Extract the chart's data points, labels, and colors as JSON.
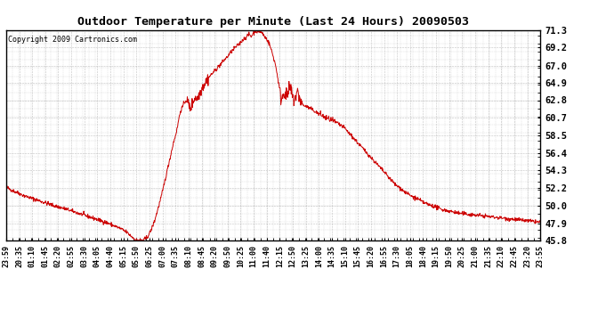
{
  "title": "Outdoor Temperature per Minute (Last 24 Hours) 20090503",
  "copyright_text": "Copyright 2009 Cartronics.com",
  "line_color": "#cc0000",
  "bg_color": "#ffffff",
  "grid_color": "#999999",
  "yticks": [
    45.8,
    47.9,
    50.0,
    52.2,
    54.3,
    56.4,
    58.5,
    60.7,
    62.8,
    64.9,
    67.0,
    69.2,
    71.3
  ],
  "ylim": [
    45.8,
    71.3
  ],
  "xtick_labels": [
    "23:59",
    "20:35",
    "01:10",
    "01:45",
    "02:20",
    "02:55",
    "03:30",
    "04:05",
    "04:40",
    "05:15",
    "05:50",
    "06:25",
    "07:00",
    "07:35",
    "08:10",
    "08:45",
    "09:20",
    "09:50",
    "10:25",
    "11:00",
    "11:40",
    "12:15",
    "12:50",
    "13:25",
    "14:00",
    "14:35",
    "15:10",
    "15:45",
    "16:20",
    "16:55",
    "17:30",
    "18:05",
    "18:40",
    "19:15",
    "19:50",
    "20:25",
    "21:00",
    "21:35",
    "22:10",
    "22:45",
    "23:20",
    "23:55"
  ],
  "control_points": [
    [
      0,
      52.3
    ],
    [
      10,
      52.0
    ],
    [
      20,
      51.8
    ],
    [
      35,
      51.5
    ],
    [
      50,
      51.2
    ],
    [
      70,
      50.9
    ],
    [
      90,
      50.6
    ],
    [
      110,
      50.3
    ],
    [
      130,
      50.0
    ],
    [
      155,
      49.7
    ],
    [
      175,
      49.4
    ],
    [
      195,
      49.1
    ],
    [
      215,
      48.8
    ],
    [
      235,
      48.5
    ],
    [
      255,
      48.2
    ],
    [
      275,
      47.9
    ],
    [
      295,
      47.5
    ],
    [
      310,
      47.2
    ],
    [
      325,
      46.8
    ],
    [
      335,
      46.4
    ],
    [
      345,
      46.0
    ],
    [
      350,
      45.85
    ],
    [
      360,
      45.82
    ],
    [
      370,
      45.85
    ],
    [
      380,
      46.2
    ],
    [
      390,
      47.0
    ],
    [
      400,
      48.2
    ],
    [
      410,
      49.8
    ],
    [
      420,
      51.5
    ],
    [
      430,
      53.5
    ],
    [
      440,
      55.5
    ],
    [
      450,
      57.5
    ],
    [
      460,
      59.2
    ],
    [
      465,
      60.5
    ],
    [
      470,
      61.5
    ],
    [
      475,
      62.0
    ],
    [
      480,
      62.5
    ],
    [
      485,
      62.8
    ],
    [
      490,
      62.5
    ],
    [
      495,
      61.8
    ],
    [
      500,
      62.2
    ],
    [
      505,
      62.8
    ],
    [
      510,
      63.2
    ],
    [
      515,
      63.0
    ],
    [
      520,
      63.5
    ],
    [
      525,
      64.0
    ],
    [
      530,
      64.5
    ],
    [
      535,
      64.8
    ],
    [
      540,
      65.2
    ],
    [
      545,
      65.5
    ],
    [
      550,
      65.8
    ],
    [
      555,
      66.0
    ],
    [
      560,
      66.3
    ],
    [
      565,
      66.5
    ],
    [
      570,
      66.8
    ],
    [
      575,
      67.0
    ],
    [
      580,
      67.3
    ],
    [
      585,
      67.5
    ],
    [
      590,
      67.8
    ],
    [
      595,
      68.0
    ],
    [
      600,
      68.3
    ],
    [
      605,
      68.6
    ],
    [
      610,
      68.8
    ],
    [
      615,
      69.1
    ],
    [
      620,
      69.3
    ],
    [
      625,
      69.5
    ],
    [
      630,
      69.7
    ],
    [
      635,
      70.0
    ],
    [
      640,
      70.2
    ],
    [
      645,
      70.4
    ],
    [
      650,
      70.6
    ],
    [
      655,
      70.8
    ],
    [
      660,
      70.5
    ],
    [
      665,
      70.9
    ],
    [
      668,
      71.0
    ],
    [
      670,
      71.2
    ],
    [
      672,
      71.3
    ],
    [
      675,
      71.1
    ],
    [
      678,
      71.0
    ],
    [
      682,
      71.2
    ],
    [
      685,
      71.1
    ],
    [
      688,
      71.0
    ],
    [
      692,
      70.8
    ],
    [
      696,
      70.5
    ],
    [
      700,
      70.3
    ],
    [
      705,
      70.0
    ],
    [
      710,
      69.5
    ],
    [
      715,
      68.8
    ],
    [
      720,
      68.0
    ],
    [
      725,
      67.2
    ],
    [
      730,
      66.0
    ],
    [
      735,
      64.5
    ],
    [
      740,
      63.0
    ],
    [
      745,
      63.3
    ],
    [
      748,
      63.8
    ],
    [
      752,
      63.5
    ],
    [
      755,
      63.2
    ],
    [
      758,
      63.5
    ],
    [
      762,
      64.0
    ],
    [
      765,
      64.3
    ],
    [
      768,
      63.8
    ],
    [
      772,
      63.2
    ],
    [
      775,
      62.8
    ],
    [
      780,
      63.2
    ],
    [
      785,
      63.8
    ],
    [
      790,
      63.2
    ],
    [
      795,
      62.5
    ],
    [
      800,
      62.2
    ],
    [
      810,
      62.0
    ],
    [
      820,
      61.8
    ],
    [
      830,
      61.5
    ],
    [
      840,
      61.2
    ],
    [
      850,
      61.0
    ],
    [
      855,
      60.8
    ],
    [
      860,
      60.7
    ],
    [
      870,
      60.5
    ],
    [
      880,
      60.3
    ],
    [
      890,
      60.0
    ],
    [
      900,
      59.8
    ],
    [
      910,
      59.5
    ],
    [
      920,
      59.0
    ],
    [
      930,
      58.5
    ],
    [
      940,
      58.0
    ],
    [
      950,
      57.5
    ],
    [
      960,
      57.0
    ],
    [
      970,
      56.5
    ],
    [
      980,
      56.0
    ],
    [
      990,
      55.5
    ],
    [
      1000,
      55.0
    ],
    [
      1010,
      54.5
    ],
    [
      1020,
      54.0
    ],
    [
      1030,
      53.5
    ],
    [
      1040,
      53.0
    ],
    [
      1050,
      52.5
    ],
    [
      1060,
      52.2
    ],
    [
      1070,
      51.8
    ],
    [
      1080,
      51.5
    ],
    [
      1090,
      51.2
    ],
    [
      1100,
      51.0
    ],
    [
      1110,
      50.8
    ],
    [
      1120,
      50.5
    ],
    [
      1130,
      50.3
    ],
    [
      1140,
      50.1
    ],
    [
      1150,
      50.0
    ],
    [
      1160,
      49.8
    ],
    [
      1170,
      49.6
    ],
    [
      1180,
      49.5
    ],
    [
      1200,
      49.3
    ],
    [
      1220,
      49.1
    ],
    [
      1240,
      49.0
    ],
    [
      1260,
      48.9
    ],
    [
      1280,
      48.8
    ],
    [
      1300,
      48.7
    ],
    [
      1320,
      48.6
    ],
    [
      1340,
      48.5
    ],
    [
      1360,
      48.4
    ],
    [
      1380,
      48.3
    ],
    [
      1400,
      48.2
    ],
    [
      1420,
      48.1
    ],
    [
      1439,
      48.0
    ]
  ]
}
